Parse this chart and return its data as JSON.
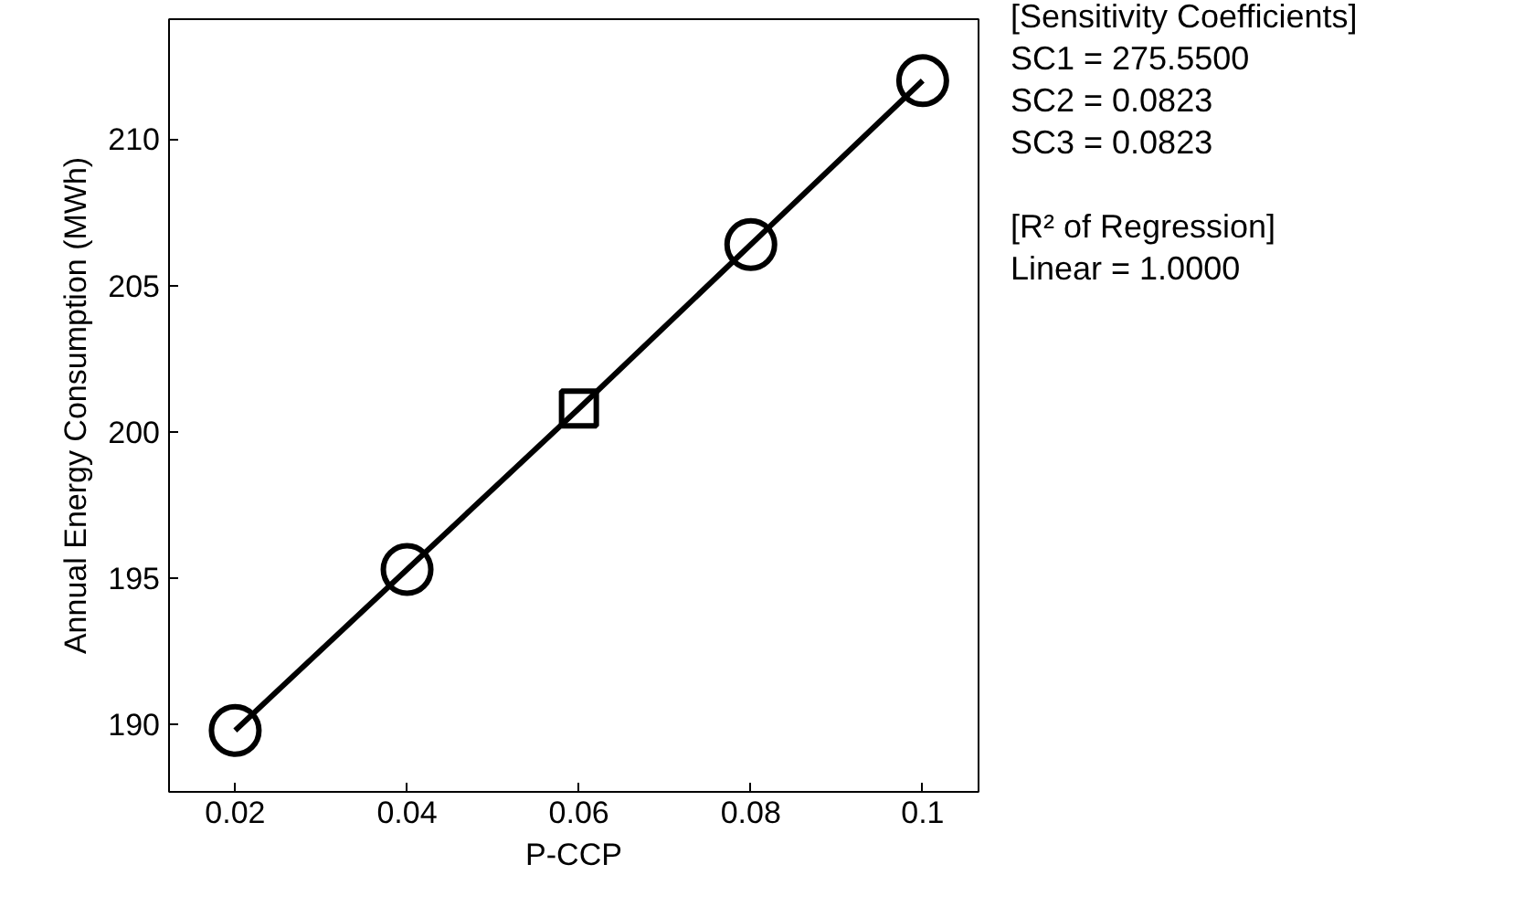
{
  "chart_data": {
    "type": "line",
    "xlabel": "P-CCP",
    "ylabel": "Annual Energy Consumption (MWh)",
    "x": [
      0.02,
      0.04,
      0.06,
      0.08,
      0.1
    ],
    "series": [
      {
        "color": "#000000",
        "marker": "none",
        "values": [
          189.8,
          195.3,
          200.8,
          206.4,
          212.0
        ]
      },
      {
        "type": "scatter",
        "color": "#000000",
        "marker": "circle",
        "x": [
          0.02,
          0.04,
          0.08,
          0.1
        ],
        "values": [
          189.8,
          195.3,
          206.4,
          212.0
        ]
      },
      {
        "type": "scatter",
        "color": "#000000",
        "marker": "square",
        "x": [
          0.06
        ],
        "values": [
          200.8
        ]
      }
    ],
    "xlim": [
      0.0123,
      0.1065
    ],
    "ylim": [
      187.7,
      214.1
    ],
    "xticks": [
      0.02,
      0.04,
      0.06,
      0.08,
      0.1
    ],
    "yticks": [
      190,
      195,
      200,
      205,
      210
    ],
    "annotations": [
      "[Sensitivity Coefficients]",
      "SC1 = 275.5500",
      "SC2 = 0.0823",
      "SC3 = 0.0823",
      "[R² of Regression]",
      "Linear = 1.0000"
    ]
  }
}
